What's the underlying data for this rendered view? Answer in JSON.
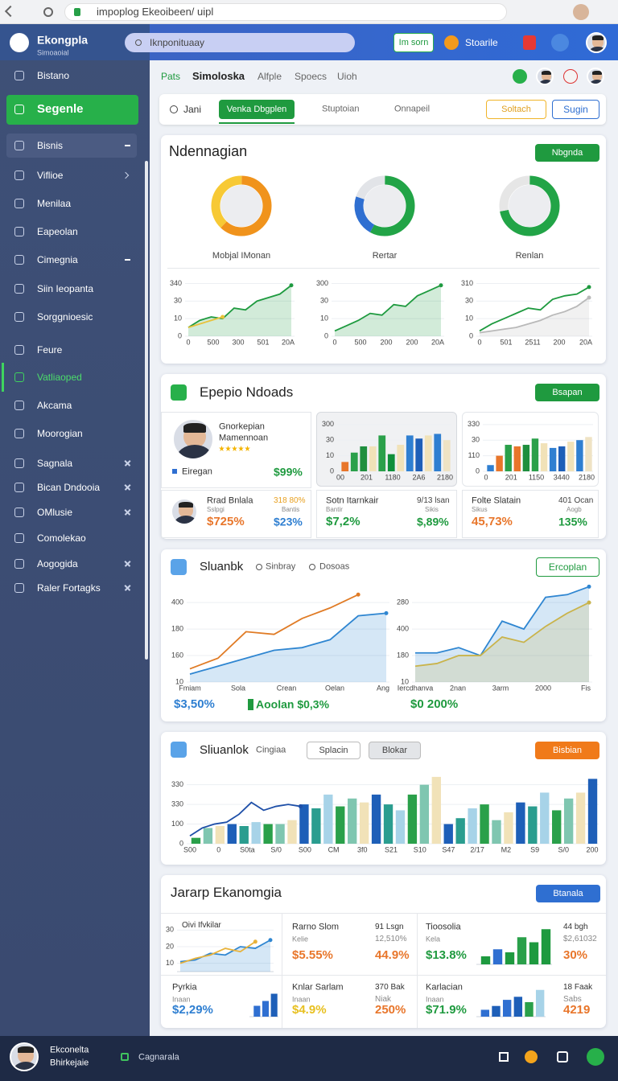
{
  "browser": {
    "url": "impoplog Ekeoibeen/ uipl"
  },
  "sidebar": {
    "brand": "Ekongpla",
    "subtitle": "Simoaoial",
    "items": [
      "Bistano",
      "Segenle",
      "Bisnis",
      "Viflioe",
      "Menilaa",
      "Eapeolan",
      "Cimegnia",
      "Siin Ieopanta",
      "Sorggnioesic",
      "Feure",
      "Vatliaoped",
      "Akcama",
      "Moorogian",
      "Sagnala",
      "Bican Dndooia",
      "OMlusie",
      "Comolekao",
      "Aogogida",
      "Raler Fortagks"
    ]
  },
  "topbar": {
    "search": "Iknponituaay",
    "button": "Im sorn",
    "link": "Stoarile"
  },
  "tabs": [
    "Pats",
    "Simoloska",
    "Alfple",
    "Spoecs",
    "Uioh"
  ],
  "toolbar": [
    "Jani",
    "Venka Dbgplen",
    "Stuptoian",
    "Onnapeil",
    "Soltach",
    "Sugin"
  ],
  "overview": {
    "title": "Ndennagian",
    "button": "Nbgnda",
    "donuts": [
      {
        "type": "donut",
        "label": "Mobjal IMonan",
        "values": [
          62,
          38
        ],
        "colors": [
          "#f0931c",
          "#f7c935"
        ]
      },
      {
        "type": "donut",
        "label": "Rertar",
        "values": [
          58,
          22,
          20
        ],
        "colors": [
          "#22a447",
          "#2f6fd1",
          "#e2e4e8"
        ]
      },
      {
        "type": "donut",
        "label": "Renlan",
        "values": [
          72,
          28
        ],
        "colors": [
          "#22a447",
          "#e6e6e6"
        ]
      }
    ],
    "charts": [
      {
        "type": "line",
        "ylim": [
          0,
          3.3
        ],
        "yticks": [
          {
            "value": 0,
            "label": "0"
          },
          {
            "value": 1,
            "label": "10"
          },
          {
            "value": 2,
            "label": "30"
          },
          {
            "value": 3,
            "label": "340"
          }
        ],
        "xlabels": [
          "0",
          "500",
          "300",
          "501",
          "20A"
        ],
        "series": [
          {
            "color": "#1e9a3f",
            "area": true,
            "values": [
              0.5,
              0.9,
              1.1,
              1.0,
              1.6,
              1.5,
              2.0,
              2.2,
              2.4,
              2.9
            ]
          },
          {
            "color": "#e8c23a",
            "values": [
              0.5,
              0.7,
              0.9,
              1.1
            ]
          }
        ]
      },
      {
        "type": "line",
        "ylim": [
          0,
          3.3
        ],
        "yticks": [
          {
            "value": 0,
            "label": "0"
          },
          {
            "value": 1,
            "label": "10"
          },
          {
            "value": 2,
            "label": "30"
          },
          {
            "value": 3,
            "label": "300"
          }
        ],
        "xlabels": [
          "0",
          "500",
          "200",
          "200",
          "20A"
        ],
        "series": [
          {
            "color": "#1e9a3f",
            "area": true,
            "values": [
              0.3,
              0.6,
              0.9,
              1.3,
              1.2,
              1.8,
              1.7,
              2.3,
              2.6,
              2.9
            ]
          }
        ]
      },
      {
        "type": "line",
        "ylim": [
          0,
          3.3
        ],
        "yticks": [
          {
            "value": 0,
            "label": "0"
          },
          {
            "value": 1,
            "label": "10"
          },
          {
            "value": 2,
            "label": "30"
          },
          {
            "value": 3,
            "label": "310"
          }
        ],
        "xlabels": [
          "0",
          "501",
          "2511",
          "200",
          "20A"
        ],
        "series": [
          {
            "color": "#b9b9b9",
            "area": true,
            "values": [
              0.2,
              0.3,
              0.4,
              0.5,
              0.7,
              0.9,
              1.2,
              1.4,
              1.7,
              2.2
            ]
          },
          {
            "color": "#1e9a3f",
            "values": [
              0.3,
              0.7,
              1.0,
              1.3,
              1.6,
              1.5,
              2.1,
              2.3,
              2.4,
              2.8
            ]
          }
        ]
      }
    ]
  },
  "products": {
    "title": "Epepio Ndoads",
    "button": "Bsapan",
    "profile": {
      "name": "Gnorkepian",
      "role": "Mamennoan",
      "tag": "Eiregan",
      "stat": "$99%"
    },
    "charts": [
      {
        "type": "bar",
        "ylim": [
          0,
          3.3
        ],
        "yticks": [
          {
            "value": 0,
            "label": "0"
          },
          {
            "value": 1,
            "label": "10"
          },
          {
            "value": 2,
            "label": "30"
          },
          {
            "value": 3,
            "label": "300"
          }
        ],
        "xlabels": [
          "00",
          "201",
          "1180",
          "2A6",
          "2180"
        ],
        "series": [
          {
            "values": [
              0.6,
              1.2,
              1.6,
              1.6,
              2.3,
              1.1,
              1.7,
              2.3,
              2.1,
              2.3,
              2.4,
              2.0
            ],
            "colors": [
              "#e8762b",
              "#2aa04a",
              "#1f8f3e",
              "#f1e2b8",
              "#2aa04a",
              "#0f8f3a",
              "#f1e2b8",
              "#2f7fd1",
              "#1e5fb8",
              "#f1e2b8",
              "#2f7fd1",
              "#efe3c4"
            ]
          }
        ]
      },
      {
        "type": "bar",
        "ylim": [
          0,
          3.3
        ],
        "yticks": [
          {
            "value": 0,
            "label": "0"
          },
          {
            "value": 1,
            "label": "110"
          },
          {
            "value": 2,
            "label": "30"
          },
          {
            "value": 3,
            "label": "330"
          }
        ],
        "xlabels": [
          "0",
          "201",
          "1150",
          "3440",
          "2180"
        ],
        "series": [
          {
            "values": [
              0.4,
              1.0,
              1.7,
              1.6,
              1.7,
              2.1,
              1.8,
              1.5,
              1.6,
              1.9,
              2.0,
              2.2
            ],
            "colors": [
              "#2f7fd1",
              "#e8762b",
              "#2aa04a",
              "#e8762b",
              "#1f8f3e",
              "#2aa04a",
              "#f1e2b8",
              "#2f7fd1",
              "#1e5fb8",
              "#f1e2b8",
              "#2f7fd1",
              "#efe3c4"
            ]
          }
        ]
      }
    ],
    "stats": [
      {
        "name": "Rrad Bnlala",
        "note": "318 80%",
        "sub": "Sslpgi",
        "sub2": "Bantis",
        "value": "$725%",
        "value2": "$23%"
      },
      {
        "name": "Sotn Itarnkair",
        "note": "9/13 lsan",
        "sub": "Bantir",
        "sub2": "Sikis",
        "value": "$7,2%",
        "value2": "$,89%"
      },
      {
        "name": "Folte Slatain",
        "note": "401 Ocan",
        "sub": "Sikus",
        "sub2": "Aogb",
        "value": "45,73%",
        "value2": "135%"
      }
    ]
  },
  "trends": {
    "title": "Sluanbk",
    "tabs": [
      "Sinbray",
      "Dosoas"
    ],
    "button": "Ercoplan",
    "charts": [
      {
        "type": "line",
        "ylim": [
          0,
          3.4
        ],
        "yticks": [
          {
            "value": 0,
            "label": "10"
          },
          {
            "value": 1,
            "label": "160"
          },
          {
            "value": 2,
            "label": "180"
          },
          {
            "value": 3,
            "label": "400"
          }
        ],
        "xlabels": [
          "Fmiam",
          "Sola",
          "Crean",
          "Oelan",
          "Ang"
        ],
        "series": [
          {
            "color": "#2f86d1",
            "area": true,
            "values": [
              0.3,
              0.6,
              0.9,
              1.2,
              1.3,
              1.6,
              2.5,
              2.6
            ]
          },
          {
            "color": "#e07b25",
            "values": [
              0.5,
              0.9,
              1.9,
              1.8,
              2.4,
              2.8,
              3.3
            ]
          }
        ]
      },
      {
        "type": "line",
        "ylim": [
          0,
          3.4
        ],
        "yticks": [
          {
            "value": 0,
            "label": "10"
          },
          {
            "value": 1,
            "label": "180"
          },
          {
            "value": 2,
            "label": "400"
          },
          {
            "value": 3,
            "label": "280"
          }
        ],
        "xlabels": [
          "Iercdhanva",
          "2nan",
          "3arm",
          "2000",
          "Fis"
        ],
        "series": [
          {
            "color": "#2f86d1",
            "area": true,
            "values": [
              1.1,
              1.1,
              1.3,
              1.0,
              2.3,
              2.0,
              3.2,
              3.3,
              3.6
            ]
          },
          {
            "color": "#c9b34a",
            "area": true,
            "values": [
              0.6,
              0.7,
              1.0,
              1.0,
              1.7,
              1.5,
              2.1,
              2.6,
              3.0
            ]
          }
        ]
      }
    ],
    "stats": [
      "$3,50%",
      "Aoolan $0,3%",
      "$0 200%"
    ]
  },
  "volume": {
    "title": "Sliuanlok",
    "tabs": [
      "Cingiaa"
    ],
    "buttons": [
      "Splacin",
      "Blokar"
    ],
    "button": "Bisbian",
    "chart": {
      "type": "bar",
      "ylim": [
        0,
        3.6
      ],
      "yticks": [
        {
          "value": 0,
          "label": "0"
        },
        {
          "value": 1,
          "label": "100"
        },
        {
          "value": 2,
          "label": "330"
        },
        {
          "value": 3,
          "label": "330"
        }
      ],
      "xlabels": [
        "S00",
        "0",
        "S0ta",
        "S/0",
        "S00",
        "CM",
        "3f0",
        "S21",
        "S10",
        "S47",
        "2/17",
        "M2",
        "S9",
        "S/0",
        "200"
      ],
      "series": [
        {
          "type": "bar",
          "palette": [
            "#2aa04a",
            "#7fc6b0",
            "#f1e2b8",
            "#1e5fb8",
            "#2a9d8f",
            "#a7d3e8"
          ],
          "values": [
            0.3,
            0.8,
            0.9,
            1.0,
            0.9,
            1.1,
            1.0,
            1.0,
            1.2,
            2.0,
            1.8,
            2.5,
            1.9,
            2.3,
            2.1,
            2.5,
            2.0,
            1.7,
            2.5,
            3.0,
            3.4,
            1.0,
            1.3,
            1.8,
            2.0,
            1.2,
            1.6,
            2.1,
            1.9,
            2.6,
            1.7,
            2.3,
            2.6,
            3.3
          ]
        },
        {
          "type": "line",
          "color": "#1e4fa8",
          "values": [
            0.4,
            0.8,
            1.0,
            1.1,
            1.5,
            2.1,
            1.7,
            1.9,
            2.0,
            1.9
          ]
        }
      ]
    }
  },
  "summary": {
    "title": "Jararp Ekanomgia",
    "button": "Btanala",
    "chart": {
      "type": "line",
      "title": "Oivi Ifvkilar",
      "ylim": [
        0.5,
        3.5
      ],
      "yticks": [
        {
          "value": 1,
          "label": "10"
        },
        {
          "value": 2,
          "label": "20"
        },
        {
          "value": 3,
          "label": "30"
        }
      ],
      "series": [
        {
          "color": "#2f86d1",
          "area": true,
          "values": [
            1.1,
            1.2,
            1.6,
            1.5,
            2.0,
            1.9,
            2.4
          ]
        },
        {
          "color": "#e8b23a",
          "values": [
            1.0,
            1.3,
            1.5,
            1.9,
            1.7,
            2.3
          ]
        }
      ]
    },
    "cells": [
      {
        "name": "Rarno Slom",
        "note": "91 Lsgn",
        "sub": "Kelie",
        "sub2": "12,510%",
        "value": "$5.55%",
        "value2": "44.9%"
      },
      {
        "name": "Tioosolia",
        "note": "44 bgh",
        "sub": "Kela",
        "sub2": "$2,61032",
        "value": "$13.8%",
        "value2": "30%",
        "chart": {
          "type": "bar",
          "ylim": [
            0,
            4
          ],
          "series": [
            {
              "values": [
                0.8,
                1.5,
                1.2,
                2.7,
                2.2,
                3.5
              ],
              "colors": [
                "#1e9a3f",
                "#2f6fd1",
                "#1e9a3f",
                "#2aa04a",
                "#1e9a3f",
                "#1e9a3f"
              ]
            }
          ]
        }
      },
      {
        "name": "Pyrkia",
        "sub": "Inaan",
        "value": "$2,29%",
        "chart": {
          "type": "bar",
          "ylim": [
            0,
            4
          ],
          "series": [
            {
              "values": [
                1.8,
                2.6,
                3.8
              ],
              "colors": [
                "#2f6fd1",
                "#2f6fd1",
                "#1e5fb8"
              ]
            }
          ]
        }
      },
      {
        "name": "Knlar Sarlam",
        "note": "370 Bak",
        "sub": "Inaan",
        "sub2": "Niak",
        "value": "$4.9%",
        "value2": "250%"
      },
      {
        "name": "Karlacian",
        "note": "18 Faak",
        "sub": "Inaan",
        "sub2": "Sabs",
        "value": "$71.9%",
        "value2": "4219",
        "chart": {
          "type": "bar",
          "ylim": [
            0,
            4
          ],
          "series": [
            {
              "values": [
                0.9,
                1.4,
                2.2,
                2.6,
                1.9,
                3.5
              ],
              "colors": [
                "#2f6fd1",
                "#1e5fb8",
                "#2f6fd1",
                "#1e5fb8",
                "#2aa04a",
                "#a7d3e8"
              ]
            }
          ]
        }
      }
    ]
  },
  "footer": {
    "name": "Ekconelta",
    "role": "Bhirkejaie",
    "link": "Cagnarala"
  }
}
